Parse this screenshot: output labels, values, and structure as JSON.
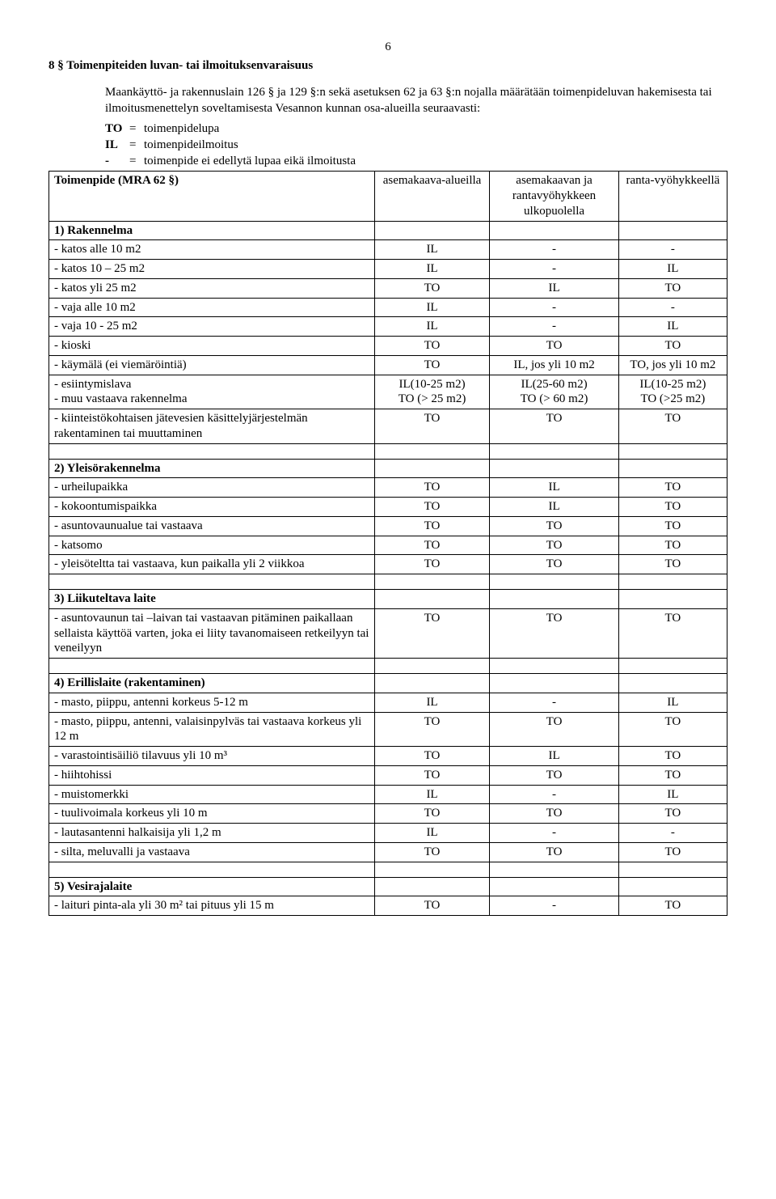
{
  "page_number": "6",
  "section_title": "8 §   Toimenpiteiden luvan- tai ilmoituksenvaraisuus",
  "intro": "Maankäyttö- ja rakennuslain 126 § ja 129 §:n sekä asetuksen 62 ja 63 §:n nojalla määrätään toimenpideluvan hakemisesta tai ilmoitusmenettelyn soveltamisesta Vesannon kunnan osa-alueilla seuraavasti:",
  "abbrev": [
    {
      "key": "TO",
      "eq": "=",
      "val": "toimenpidelupa"
    },
    {
      "key": "IL",
      "eq": "=",
      "val": "toimenpideilmoitus"
    },
    {
      "key": "-",
      "eq": "=",
      "val": "toimenpide ei edellytä lupaa eikä ilmoitusta"
    }
  ],
  "header": {
    "c1": "Toimenpide (MRA 62 §)",
    "c2": "asemakaava-alueilla",
    "c3": "asemakaavan ja rantavyöhykkeen ulkopuolella",
    "c4": "ranta-vyöhykkeellä"
  },
  "groups": [
    {
      "heading": "1) Rakennelma",
      "rows": [
        {
          "l": "- katos alle 10 m2",
          "a": "IL",
          "b": "-",
          "c": "-"
        },
        {
          "l": "- katos 10 – 25 m2",
          "a": "IL",
          "b": "-",
          "c": "IL"
        },
        {
          "l": "- katos yli 25 m2",
          "a": "TO",
          "b": "IL",
          "c": "TO"
        },
        {
          "l": "- vaja alle 10 m2",
          "a": "IL",
          "b": "-",
          "c": "-"
        },
        {
          "l": "- vaja 10 - 25 m2",
          "a": "IL",
          "b": "-",
          "c": "IL"
        },
        {
          "l": "- kioski",
          "a": "TO",
          "b": "TO",
          "c": "TO"
        },
        {
          "l": "- käymälä (ei viemäröintiä)",
          "a": "TO",
          "b": "IL, jos yli 10 m2",
          "c": "TO, jos yli 10 m2"
        },
        {
          "l": "- esiintymislava\n- muu vastaava rakennelma",
          "a": "IL(10-25 m2)\nTO (> 25 m2)",
          "b": "IL(25-60 m2)\nTO (> 60 m2)",
          "c": "IL(10-25 m2)\nTO (>25 m2)"
        },
        {
          "l": "- kiinteistökohtaisen jätevesien käsittelyjärjestelmän rakentaminen tai muuttaminen",
          "a": "TO",
          "b": "TO",
          "c": "TO"
        }
      ]
    },
    {
      "heading": "2) Yleisörakennelma",
      "rows": [
        {
          "l": "- urheilupaikka",
          "a": "TO",
          "b": "IL",
          "c": "TO"
        },
        {
          "l": "- kokoontumispaikka",
          "a": "TO",
          "b": "IL",
          "c": "TO"
        },
        {
          "l": "- asuntovaunualue tai vastaava",
          "a": "TO",
          "b": "TO",
          "c": "TO"
        },
        {
          "l": "- katsomo",
          "a": "TO",
          "b": "TO",
          "c": "TO"
        },
        {
          "l": "- yleisöteltta tai vastaava, kun paikalla yli 2 viikkoa",
          "a": "TO",
          "b": "TO",
          "c": "TO"
        }
      ]
    },
    {
      "heading": "3) Liikuteltava laite",
      "rows": [
        {
          "l": "- asuntovaunun tai –laivan tai vastaavan pitäminen paikallaan sellaista käyttöä varten, joka ei liity tavanomaiseen retkeilyyn tai veneilyyn",
          "a": "TO",
          "b": "TO",
          "c": "TO"
        }
      ]
    },
    {
      "heading": "4) Erillislaite (rakentaminen)",
      "rows": [
        {
          "l": "- masto, piippu, antenni korkeus 5-12 m",
          "a": "IL",
          "b": "-",
          "c": "IL"
        },
        {
          "l": "- masto, piippu, antenni, valaisinpylväs tai vastaava korkeus yli 12 m",
          "a": "TO",
          "b": "TO",
          "c": "TO"
        },
        {
          "l": "- varastointisäiliö tilavuus yli 10 m³",
          "a": "TO",
          "b": "IL",
          "c": "TO"
        },
        {
          "l": "- hiihtohissi",
          "a": "TO",
          "b": "TO",
          "c": "TO"
        },
        {
          "l": "- muistomerkki",
          "a": "IL",
          "b": "-",
          "c": "IL"
        },
        {
          "l": "- tuulivoimala korkeus yli 10 m",
          "a": "TO",
          "b": "TO",
          "c": "TO"
        },
        {
          "l": "- lautasantenni halkaisija yli 1,2 m",
          "a": "IL",
          "b": "-",
          "c": "-"
        },
        {
          "l": "- silta, meluvalli ja vastaava",
          "a": "TO",
          "b": "TO",
          "c": "TO"
        }
      ]
    },
    {
      "heading": "5) Vesirajalaite",
      "rows": [
        {
          "l": "- laituri pinta-ala yli 30 m² tai pituus yli 15 m",
          "a": "TO",
          "b": "-",
          "c": "TO"
        }
      ]
    }
  ]
}
